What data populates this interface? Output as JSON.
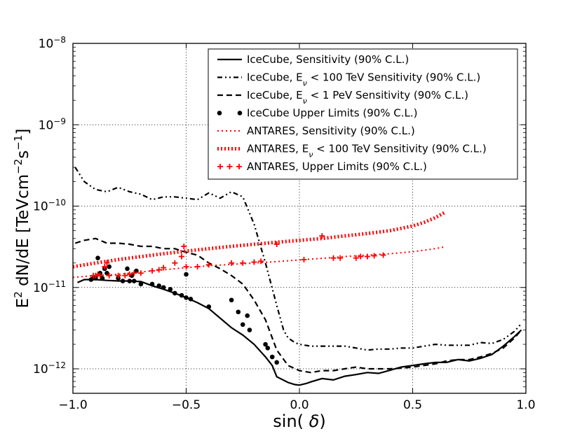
{
  "chart_data": {
    "type": "line",
    "title": "",
    "xlabel": "sin(δ)",
    "ylabel_parts": {
      "pre": "E",
      "sq": "2",
      "mid": " dN/dE [TeVcm",
      "exp1": "−2",
      "s": "s",
      "exp2": "−1",
      "post": "]"
    },
    "xlim": [
      -1.0,
      1.0
    ],
    "ylim": [
      5e-13,
      1e-08
    ],
    "yscale": "log",
    "grid": true,
    "legend_position": "upper-right",
    "xticks": [
      {
        "v": -1.0,
        "label": "−1.0"
      },
      {
        "v": -0.5,
        "label": "−0.5"
      },
      {
        "v": 0.0,
        "label": "0.0"
      },
      {
        "v": 0.5,
        "label": "0.5"
      },
      {
        "v": 1.0,
        "label": "1.0"
      }
    ],
    "yticks": [
      {
        "v": 1e-12,
        "base": "10",
        "exp": "−12"
      },
      {
        "v": 1e-11,
        "base": "10",
        "exp": "−11"
      },
      {
        "v": 1e-10,
        "base": "10",
        "exp": "−10"
      },
      {
        "v": 1e-09,
        "base": "10",
        "exp": "−9"
      },
      {
        "v": 1e-08,
        "base": "10",
        "exp": "−8"
      }
    ],
    "series": [
      {
        "name": "IceCube, Sensitivity (90% C.L.)",
        "legend": {
          "pre": "IceCube, Sensitivity (90% C.L.)"
        },
        "style": "solid",
        "color": "#000000",
        "x": [
          -0.98,
          -0.95,
          -0.9,
          -0.85,
          -0.8,
          -0.75,
          -0.7,
          -0.65,
          -0.6,
          -0.55,
          -0.5,
          -0.45,
          -0.4,
          -0.35,
          -0.3,
          -0.25,
          -0.2,
          -0.15,
          -0.12,
          -0.1,
          -0.05,
          -0.02,
          0.0,
          0.03,
          0.05,
          0.1,
          0.15,
          0.2,
          0.25,
          0.3,
          0.35,
          0.4,
          0.45,
          0.5,
          0.55,
          0.6,
          0.65,
          0.7,
          0.75,
          0.8,
          0.85,
          0.9,
          0.95,
          0.98
        ],
        "y": [
          1.15e-11,
          1.25e-11,
          1.25e-11,
          1.22e-11,
          1.2e-11,
          1.2e-11,
          1.18e-11,
          1.05e-11,
          9.5e-12,
          8.5e-12,
          7.5e-12,
          6.5e-12,
          5.5e-12,
          4.2e-12,
          3.2e-12,
          2.6e-12,
          2e-12,
          1.4e-12,
          1.1e-12,
          8e-13,
          6.8e-13,
          6.4e-13,
          6.3e-13,
          6.6e-13,
          6.9e-13,
          7.6e-13,
          7.3e-13,
          8.1e-13,
          8.5e-13,
          9e-13,
          8.8e-13,
          9.6e-13,
          1.05e-12,
          1.1e-12,
          1.15e-12,
          1.2e-12,
          1.2e-12,
          1.3e-12,
          1.25e-12,
          1.35e-12,
          1.5e-12,
          1.9e-12,
          2.5e-12,
          3e-12
        ]
      },
      {
        "name": "IceCube, E_ν < 100 TeV Sensitivity (90% C.L.)",
        "legend": {
          "pre": "IceCube, E",
          "sub": "ν",
          "post": " < 100 TeV Sensitivity (90% C.L.)"
        },
        "style": "dashdotdot",
        "color": "#000000",
        "x": [
          -0.99,
          -0.95,
          -0.9,
          -0.85,
          -0.8,
          -0.75,
          -0.7,
          -0.65,
          -0.6,
          -0.55,
          -0.5,
          -0.45,
          -0.4,
          -0.35,
          -0.3,
          -0.25,
          -0.2,
          -0.15,
          -0.1,
          -0.07,
          -0.05,
          -0.02,
          0.0,
          0.05,
          0.1,
          0.15,
          0.2,
          0.25,
          0.3,
          0.35,
          0.4,
          0.45,
          0.5,
          0.55,
          0.6,
          0.65,
          0.7,
          0.75,
          0.8,
          0.85,
          0.9,
          0.95,
          0.98
        ],
        "y": [
          3e-10,
          2e-10,
          1.6e-10,
          1.5e-10,
          1.7e-10,
          1.5e-10,
          1.4e-10,
          1.2e-10,
          1.3e-10,
          1.3e-10,
          1.25e-10,
          1.2e-10,
          1.45e-10,
          1.25e-10,
          1.5e-10,
          1.3e-10,
          6e-11,
          2e-11,
          6e-12,
          3e-12,
          2.4e-12,
          2.1e-12,
          2e-12,
          1.9e-12,
          1.9e-12,
          1.9e-12,
          1.9e-12,
          1.8e-12,
          1.7e-12,
          1.75e-12,
          1.75e-12,
          1.8e-12,
          1.8e-12,
          1.9e-12,
          2e-12,
          1.95e-12,
          1.95e-12,
          1.95e-12,
          2.1e-12,
          2.05e-12,
          2.3e-12,
          2.9e-12,
          3.6e-12
        ]
      },
      {
        "name": "IceCube, E_ν < 1 PeV Sensitivity (90% C.L.)",
        "legend": {
          "pre": "IceCube, E",
          "sub": "ν",
          "post": " < 1 PeV Sensitivity (90% C.L.)"
        },
        "style": "dashed",
        "color": "#000000",
        "x": [
          -0.99,
          -0.95,
          -0.9,
          -0.85,
          -0.8,
          -0.75,
          -0.7,
          -0.65,
          -0.6,
          -0.55,
          -0.5,
          -0.45,
          -0.4,
          -0.35,
          -0.3,
          -0.25,
          -0.2,
          -0.15,
          -0.1,
          -0.05,
          0.0,
          0.05,
          0.1,
          0.15,
          0.2,
          0.25,
          0.3,
          0.35,
          0.4,
          0.45,
          0.5,
          0.55,
          0.6,
          0.65,
          0.7,
          0.75,
          0.8,
          0.85,
          0.9,
          0.95,
          0.98
        ],
        "y": [
          3.5e-11,
          3.8e-11,
          4e-11,
          3.5e-11,
          3.5e-11,
          3.4e-11,
          3.2e-11,
          3.2e-11,
          3e-11,
          3e-11,
          2.7e-11,
          2.5e-11,
          2e-11,
          1.7e-11,
          1.4e-11,
          1.1e-11,
          7e-12,
          4e-12,
          1.7e-12,
          1.1e-12,
          9.5e-13,
          9e-13,
          9.5e-13,
          9.5e-13,
          1e-12,
          1.05e-12,
          1e-12,
          1e-12,
          1e-12,
          1.02e-12,
          1.05e-12,
          1.1e-12,
          1.15e-12,
          1.25e-12,
          1.3e-12,
          1.3e-12,
          1.4e-12,
          1.55e-12,
          1.8e-12,
          2.4e-12,
          3e-12
        ]
      },
      {
        "name": "IceCube Upper Limits (90% C.L.)",
        "legend": {
          "pre": "IceCube Upper Limits (90% C.L.)"
        },
        "style": "points",
        "color": "#000000",
        "x": [
          -0.92,
          -0.91,
          -0.9,
          -0.89,
          -0.88,
          -0.87,
          -0.86,
          -0.85,
          -0.84,
          -0.8,
          -0.78,
          -0.76,
          -0.75,
          -0.74,
          -0.73,
          -0.72,
          -0.7,
          -0.65,
          -0.62,
          -0.6,
          -0.57,
          -0.55,
          -0.52,
          -0.5,
          -0.5,
          -0.48,
          -0.4,
          -0.3,
          -0.27,
          -0.25,
          -0.23,
          -0.22,
          -0.15,
          -0.14,
          -0.12,
          -0.1
        ],
        "y": [
          1.25e-11,
          1.3e-11,
          1.3e-11,
          2.3e-11,
          1.5e-11,
          1.3e-11,
          1.7e-11,
          1.5e-11,
          1.8e-11,
          1.3e-11,
          1.2e-11,
          1.7e-11,
          1.2e-11,
          1.4e-11,
          1.2e-11,
          1.6e-11,
          1.1e-11,
          1.1e-11,
          1.05e-11,
          1e-11,
          9.5e-12,
          8.5e-12,
          8e-12,
          1.45e-11,
          7.5e-12,
          7.2e-12,
          5.8e-12,
          7e-12,
          5e-12,
          3.5e-12,
          4.5e-12,
          3e-12,
          2e-12,
          1.8e-12,
          1.4e-12,
          1.2e-12
        ]
      },
      {
        "name": "ANTARES, Sensitivity (90% C.L.)",
        "legend": {
          "pre": "ANTARES, Sensitivity (90% C.L.)"
        },
        "style": "dotted",
        "color": "#ff0000",
        "x": [
          -1.0,
          -0.9,
          -0.8,
          -0.7,
          -0.6,
          -0.5,
          -0.4,
          -0.3,
          -0.2,
          -0.1,
          0.0,
          0.1,
          0.2,
          0.3,
          0.4,
          0.5,
          0.6,
          0.64
        ],
        "y": [
          1.33e-11,
          1.4e-11,
          1.45e-11,
          1.55e-11,
          1.65e-11,
          1.75e-11,
          1.85e-11,
          1.92e-11,
          2e-11,
          2.08e-11,
          2.18e-11,
          2.28e-11,
          2.4e-11,
          2.5e-11,
          2.6e-11,
          2.75e-11,
          3e-11,
          3.15e-11
        ]
      },
      {
        "name": "ANTARES, E_ν < 100 TeV Sensitivity (90% C.L.)",
        "legend": {
          "pre": "ANTARES, E",
          "sub": "ν",
          "post": " < 100 TeV Sensitivity (90% C.L.)"
        },
        "style": "thickdotted",
        "color": "#ff0000",
        "x": [
          -1.0,
          -0.9,
          -0.8,
          -0.7,
          -0.6,
          -0.5,
          -0.4,
          -0.3,
          -0.2,
          -0.1,
          0.0,
          0.1,
          0.2,
          0.3,
          0.4,
          0.5,
          0.55,
          0.6,
          0.64
        ],
        "y": [
          1.8e-11,
          2e-11,
          2.2e-11,
          2.4e-11,
          2.6e-11,
          2.8e-11,
          3e-11,
          3.2e-11,
          3.4e-11,
          3.6e-11,
          3.8e-11,
          4e-11,
          4.3e-11,
          4.6e-11,
          5e-11,
          5.7e-11,
          6.3e-11,
          7.2e-11,
          8.3e-11
        ]
      },
      {
        "name": "ANTARES, Upper Limits (90% C.L.)",
        "legend": {
          "pre": "ANTARES, Upper Limits (90% C.L.)"
        },
        "style": "plus",
        "color": "#ff0000",
        "x": [
          -0.91,
          -0.9,
          -0.89,
          -0.88,
          -0.86,
          -0.85,
          -0.84,
          -0.8,
          -0.77,
          -0.75,
          -0.73,
          -0.7,
          -0.65,
          -0.62,
          -0.6,
          -0.55,
          -0.52,
          -0.51,
          -0.5,
          -0.45,
          -0.4,
          -0.3,
          -0.25,
          -0.2,
          -0.17,
          -0.1,
          0.02,
          0.1,
          0.15,
          0.18,
          0.25,
          0.27,
          0.3,
          0.33,
          0.37
        ],
        "y": [
          1.4e-11,
          1.4e-11,
          1.45e-11,
          1.4e-11,
          1.8e-11,
          2e-11,
          1.4e-11,
          1.4e-11,
          1.4e-11,
          1.45e-11,
          1.5e-11,
          1.5e-11,
          1.6e-11,
          1.65e-11,
          1.75e-11,
          2e-11,
          2.4e-11,
          3.2e-11,
          1.8e-11,
          1.8e-11,
          1.9e-11,
          2e-11,
          2e-11,
          2.05e-11,
          2.1e-11,
          3.4e-11,
          2.2e-11,
          4.3e-11,
          2.3e-11,
          2.3e-11,
          2.3e-11,
          2.4e-11,
          2.4e-11,
          2.45e-11,
          2.5e-11
        ]
      }
    ]
  }
}
